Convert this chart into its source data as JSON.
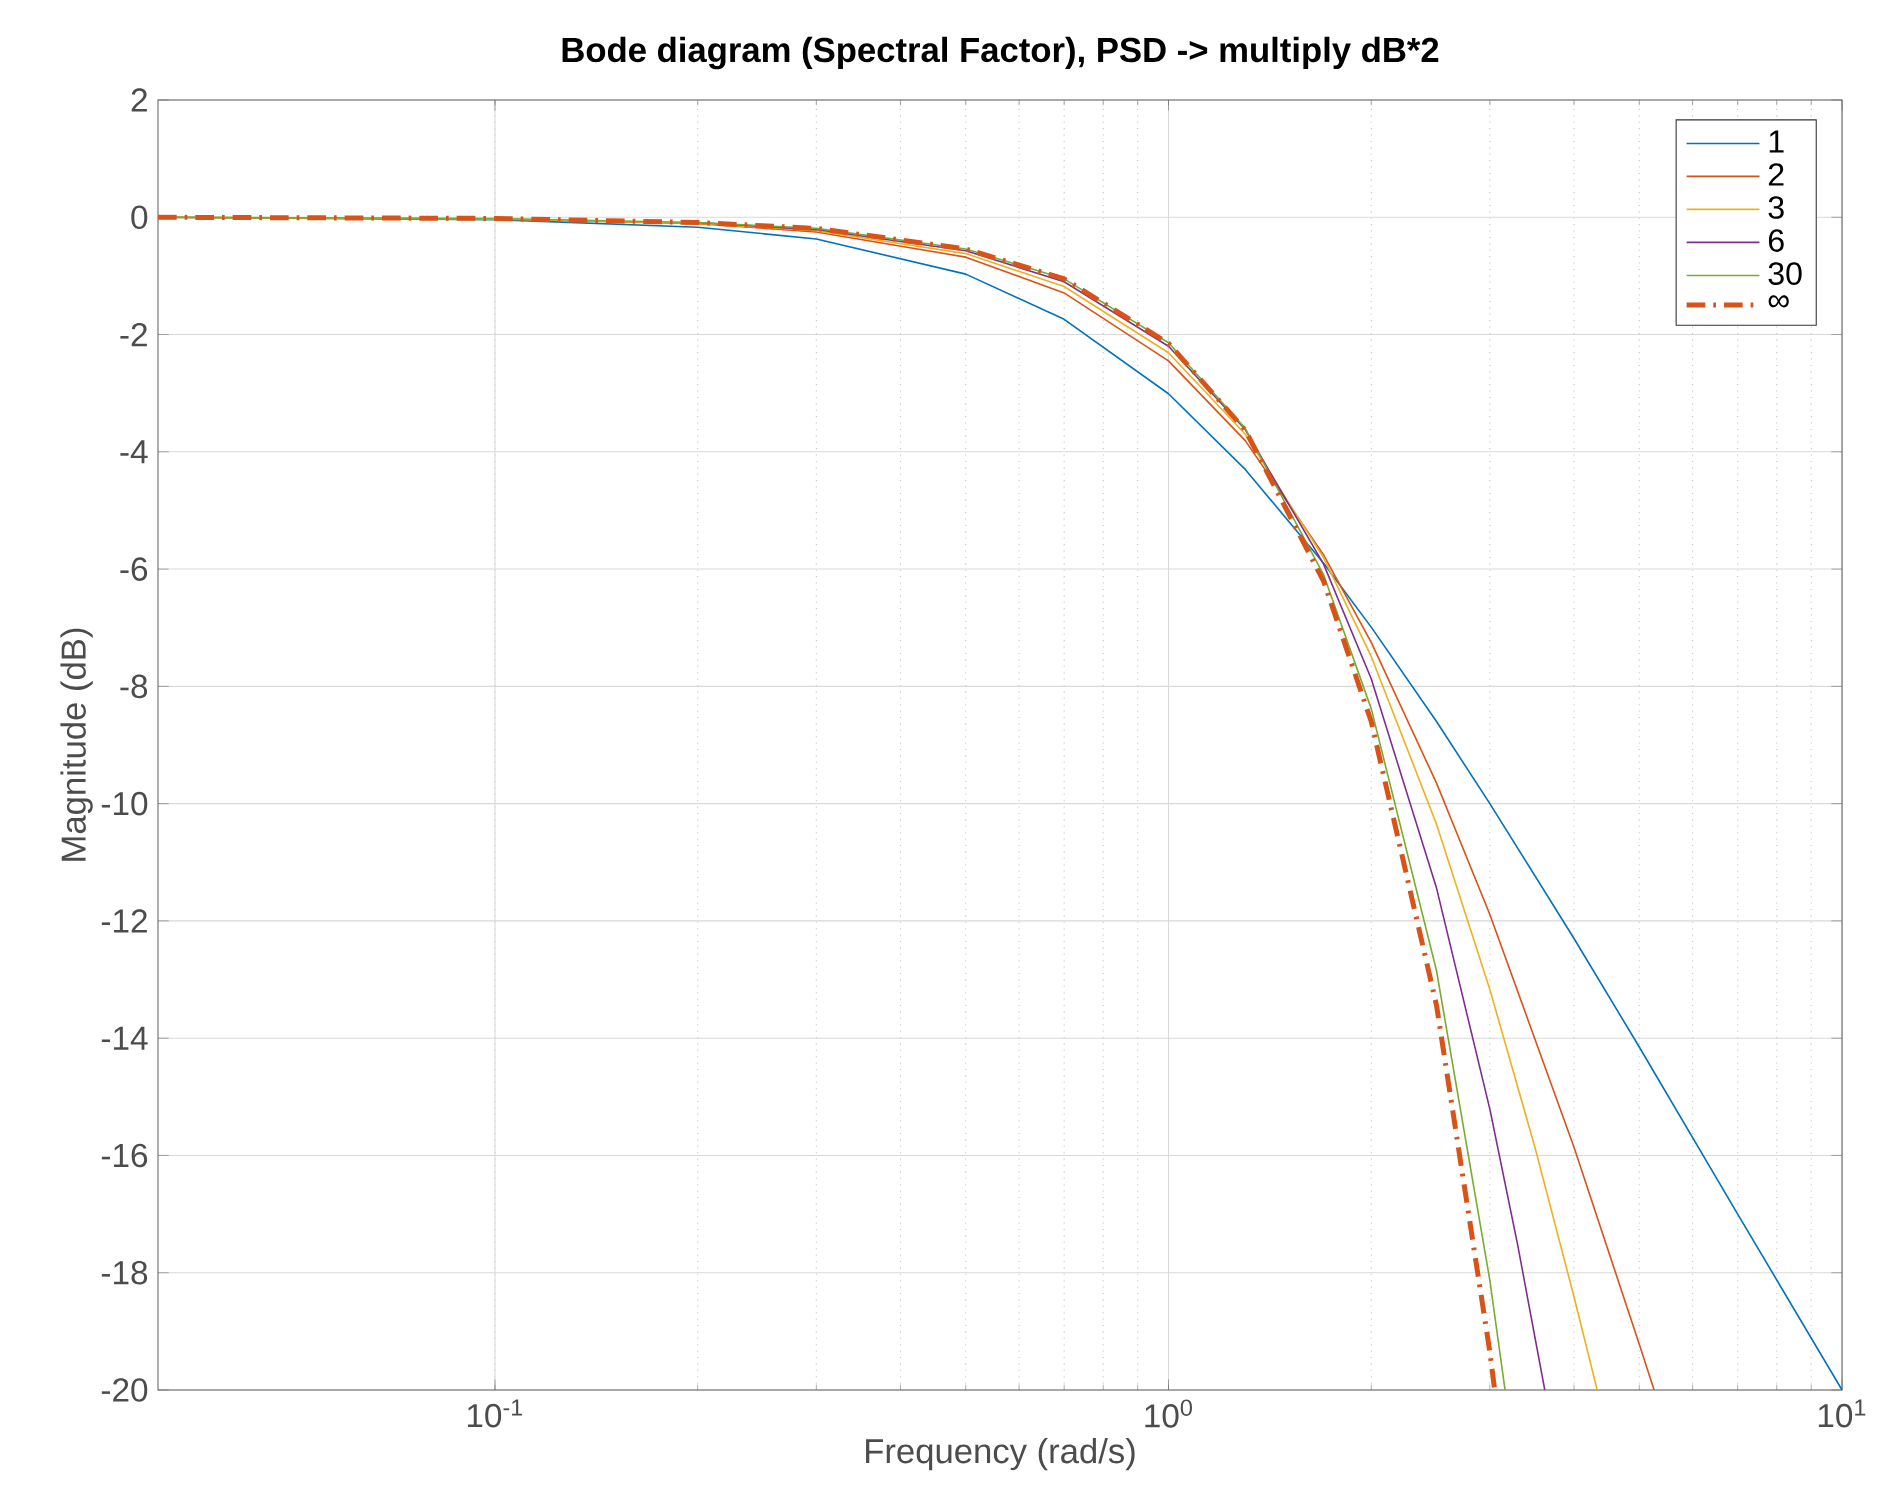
{
  "chart_data": {
    "type": "line",
    "title": "Bode diagram (Spectral Factor),   PSD -> multiply dB*2",
    "xlabel": "Frequency  (rad/s)",
    "ylabel": "Magnitude (dB)",
    "log": "x",
    "xlim": [
      0.0316,
      10
    ],
    "ylim": [
      -20,
      2
    ],
    "xticks": [
      {
        "value": 0.1,
        "label": "10$^{-1}$"
      },
      {
        "value": 1,
        "label": "10$^{0}$"
      },
      {
        "value": 10,
        "label": "10$^{1}$"
      }
    ],
    "yticks": [
      -20,
      -18,
      -16,
      -14,
      -12,
      -10,
      -8,
      -6,
      -4,
      -2,
      0,
      2
    ],
    "grid": true,
    "legend": "top right",
    "marker": "none",
    "series": [
      {
        "name": "1",
        "color": "#0072bd",
        "line_style": "solid",
        "x": [
          0.0316,
          0.1,
          0.2,
          0.3,
          0.5,
          0.7,
          1,
          1.3,
          1.7,
          2,
          2.5,
          3,
          4,
          5,
          7,
          10
        ],
        "values": [
          0,
          -0.04,
          -0.17,
          -0.37,
          -0.97,
          -1.74,
          -3.01,
          -4.3,
          -5.9,
          -6.99,
          -8.6,
          -10,
          -12.3,
          -14.15,
          -17,
          -20
        ]
      },
      {
        "name": "2",
        "color": "#d95319",
        "line_style": "solid",
        "x": [
          0.0316,
          0.1,
          0.2,
          0.3,
          0.5,
          0.7,
          1,
          1.3,
          1.7,
          2,
          2.5,
          3,
          4,
          5,
          5.26
        ],
        "values": [
          0,
          -0.03,
          -0.11,
          -0.25,
          -0.68,
          -1.29,
          -2.45,
          -3.81,
          -5.76,
          -7.25,
          -9.65,
          -11.89,
          -15.86,
          -19.22,
          -20
        ]
      },
      {
        "name": "3",
        "color": "#edb120",
        "line_style": "solid",
        "x": [
          0.0316,
          0.1,
          0.2,
          0.3,
          0.5,
          0.7,
          1,
          1.3,
          1.7,
          2,
          2.5,
          3,
          3.5,
          4,
          4.33
        ],
        "values": [
          0,
          -0.03,
          -0.1,
          -0.23,
          -0.62,
          -1.18,
          -2.31,
          -3.7,
          -5.81,
          -7.49,
          -10.35,
          -13.17,
          -15.86,
          -18.41,
          -20
        ]
      },
      {
        "name": "6",
        "color": "#7e2f8e",
        "line_style": "solid",
        "x": [
          0.2,
          0.3,
          0.5,
          0.7,
          1,
          1.3,
          1.7,
          2,
          2.5,
          3,
          3.3,
          3.62
        ],
        "values": [
          -0.09,
          -0.21,
          -0.57,
          -1.1,
          -2.2,
          -3.62,
          -5.92,
          -7.87,
          -11.44,
          -15.21,
          -17.53,
          -20
        ]
      },
      {
        "name": "30",
        "color": "#77ac30",
        "line_style": "solid",
        "x": [
          0.0316,
          0.1,
          0.2,
          0.3,
          0.5,
          0.7,
          1,
          1.3,
          1.7,
          2,
          2.5,
          3,
          3.16
        ],
        "values": [
          0,
          -0.02,
          -0.09,
          -0.19,
          -0.54,
          -1.05,
          -2.14,
          -3.6,
          -6.1,
          -8.38,
          -12.85,
          -18.13,
          -20
        ]
      },
      {
        "name": "∞",
        "color": "#d95319",
        "line_style": "dashed",
        "x": [
          0.0316,
          0.1,
          0.2,
          0.3,
          0.5,
          0.7,
          1,
          1.3,
          1.7,
          2,
          2.5,
          3,
          3.05
        ],
        "values": [
          0,
          -0.02,
          -0.09,
          -0.19,
          -0.54,
          -1.05,
          -2.15,
          -3.63,
          -6.21,
          -8.6,
          -13.44,
          -19.35,
          -20
        ]
      }
    ]
  }
}
